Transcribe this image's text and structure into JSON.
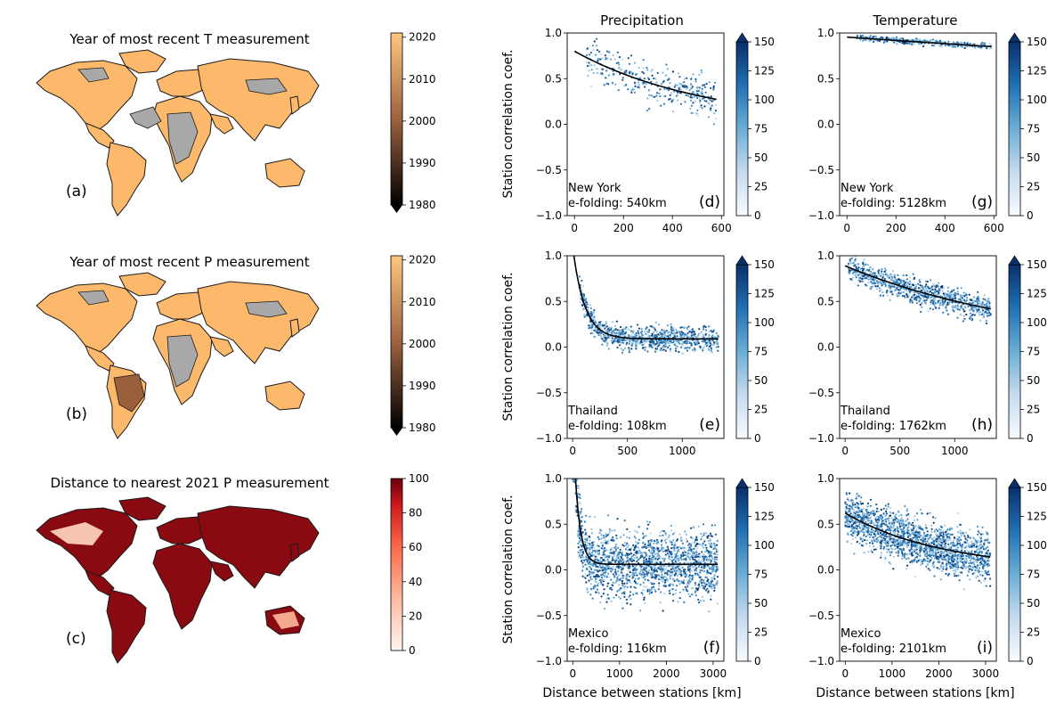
{
  "columns": {
    "precipitation": "Precipitation",
    "temperature": "Temperature"
  },
  "y_label": "Station correlation coef.",
  "x_label": "Distance between stations [km]",
  "maps": [
    {
      "panel": "(a)",
      "title": "Year of most recent T measurement",
      "cmap": "copper",
      "colorbar": {
        "min": 1980,
        "max": 2021,
        "ticks": [
          1980,
          1990,
          2000,
          2010,
          2020
        ],
        "extend": "min"
      }
    },
    {
      "panel": "(b)",
      "title": "Year of most recent P measurement",
      "cmap": "copper",
      "colorbar": {
        "min": 1980,
        "max": 2021,
        "ticks": [
          1980,
          1990,
          2000,
          2010,
          2020
        ],
        "extend": "min"
      }
    },
    {
      "panel": "(c)",
      "title": "Distance to nearest 2021 P measurement",
      "cmap": "reds",
      "colorbar": {
        "min": 0,
        "max": 100,
        "ticks": [
          0,
          20,
          40,
          60,
          80,
          100
        ],
        "extend": "none"
      }
    }
  ],
  "chart_data": [
    {
      "panel": "(d)",
      "type": "scatter",
      "variable": "Precipitation",
      "region": "New York",
      "efolding": "e-folding: 540km",
      "efolding_km": 540,
      "xlim": [
        -30,
        610
      ],
      "ylim": [
        -1.0,
        1.0
      ],
      "xticks": [
        0,
        200,
        400,
        600
      ],
      "yticks": [
        -1.0,
        -0.5,
        0.0,
        0.5,
        1.0
      ],
      "fit": {
        "a": 0.8,
        "b": 0.0
      },
      "cloud": {
        "xmin": 50,
        "xmax": 580,
        "spread": 0.13,
        "n": 330,
        "cmax": 150
      },
      "colorbar": {
        "min": 0,
        "max": 150,
        "ticks": [
          0,
          25,
          50,
          75,
          100,
          125,
          150
        ]
      }
    },
    {
      "panel": "(e)",
      "type": "scatter",
      "variable": "Precipitation",
      "region": "Thailand",
      "efolding": "e-folding: 108km",
      "efolding_km": 108,
      "xlim": [
        -50,
        1380
      ],
      "ylim": [
        -1.0,
        1.0
      ],
      "xticks": [
        0,
        500,
        1000
      ],
      "yticks": [
        -1.0,
        -0.5,
        0.0,
        0.5,
        1.0
      ],
      "fit": {
        "a": 1.1,
        "b": 0.09
      },
      "cloud": {
        "xmin": 60,
        "xmax": 1330,
        "spread": 0.08,
        "n": 900,
        "cmax": 150
      },
      "colorbar": {
        "min": 0,
        "max": 150,
        "ticks": [
          0,
          25,
          50,
          75,
          100,
          125,
          150
        ]
      }
    },
    {
      "panel": "(f)",
      "type": "scatter",
      "variable": "Precipitation",
      "region": "Mexico",
      "efolding": "e-folding: 116km",
      "efolding_km": 116,
      "xlim": [
        -120,
        3230
      ],
      "ylim": [
        -1.0,
        1.0
      ],
      "xticks": [
        0,
        1000,
        2000,
        3000
      ],
      "yticks": [
        -1.0,
        -0.5,
        0.0,
        0.5,
        1.0
      ],
      "fit": {
        "a": 1.6,
        "b": 0.06
      },
      "cloud": {
        "xmin": 0,
        "xmax": 3100,
        "spread": 0.22,
        "n": 1800,
        "cmax": 150
      },
      "colorbar": {
        "min": 0,
        "max": 150,
        "ticks": [
          0,
          25,
          50,
          75,
          100,
          125,
          150
        ]
      }
    },
    {
      "panel": "(g)",
      "type": "scatter",
      "variable": "Temperature",
      "region": "New York",
      "efolding": "e-folding: 5128km",
      "efolding_km": 5128,
      "xlim": [
        -30,
        610
      ],
      "ylim": [
        -1.0,
        1.0
      ],
      "xticks": [
        0,
        200,
        400,
        600
      ],
      "yticks": [
        -1.0,
        -0.5,
        0.0,
        0.5,
        1.0
      ],
      "fit": {
        "a": 0.955,
        "b": 0.0
      },
      "cloud": {
        "xmin": 40,
        "xmax": 590,
        "spread": 0.02,
        "n": 330,
        "cmax": 150
      },
      "colorbar": {
        "min": 0,
        "max": 150,
        "ticks": [
          0,
          25,
          50,
          75,
          100,
          125,
          150
        ]
      }
    },
    {
      "panel": "(h)",
      "type": "scatter",
      "variable": "Temperature",
      "region": "Thailand",
      "efolding": "e-folding: 1762km",
      "efolding_km": 1762,
      "xlim": [
        -50,
        1380
      ],
      "ylim": [
        -1.0,
        1.0
      ],
      "xticks": [
        0,
        500,
        1000
      ],
      "yticks": [
        -1.0,
        -0.5,
        0.0,
        0.5,
        1.0
      ],
      "fit": {
        "a": 0.89,
        "b": 0.0
      },
      "cloud": {
        "xmin": 30,
        "xmax": 1330,
        "spread": 0.09,
        "n": 900,
        "cmax": 150
      },
      "colorbar": {
        "min": 0,
        "max": 150,
        "ticks": [
          0,
          25,
          50,
          75,
          100,
          125,
          150
        ]
      }
    },
    {
      "panel": "(i)",
      "type": "scatter",
      "variable": "Temperature",
      "region": "Mexico",
      "efolding": "e-folding: 2101km",
      "efolding_km": 2101,
      "xlim": [
        -120,
        3230
      ],
      "ylim": [
        -1.0,
        1.0
      ],
      "xticks": [
        0,
        1000,
        2000,
        3000
      ],
      "yticks": [
        -1.0,
        -0.5,
        0.0,
        0.5,
        1.0
      ],
      "fit": {
        "a": 0.62,
        "b": 0.0
      },
      "cloud": {
        "xmin": 0,
        "xmax": 3100,
        "spread": 0.16,
        "n": 1800,
        "cmax": 150
      },
      "colorbar": {
        "min": 0,
        "max": 150,
        "ticks": [
          0,
          25,
          50,
          75,
          100,
          125,
          150
        ]
      }
    }
  ]
}
